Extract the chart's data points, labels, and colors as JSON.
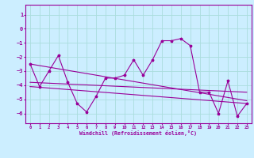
{
  "xlabel": "Windchill (Refroidissement éolien,°C)",
  "bg_color": "#cceeff",
  "line_color": "#990099",
  "grid_color": "#aadddd",
  "x_ticks": [
    0,
    1,
    2,
    3,
    4,
    5,
    6,
    7,
    8,
    9,
    10,
    11,
    12,
    13,
    14,
    15,
    16,
    17,
    18,
    19,
    20,
    21,
    22,
    23
  ],
  "y_ticks": [
    -6,
    -5,
    -4,
    -3,
    -2,
    -1,
    0,
    1
  ],
  "xlim": [
    -0.5,
    23.5
  ],
  "ylim": [
    -6.7,
    1.7
  ],
  "main_line_x": [
    0,
    1,
    2,
    3,
    4,
    5,
    6,
    7,
    8,
    9,
    10,
    11,
    12,
    13,
    14,
    15,
    16,
    17,
    18,
    19,
    20,
    21,
    22,
    23
  ],
  "main_line_y": [
    -2.5,
    -4.1,
    -3.0,
    -1.9,
    -3.8,
    -5.3,
    -5.9,
    -4.8,
    -3.5,
    -3.5,
    -3.3,
    -2.2,
    -3.3,
    -2.2,
    -0.85,
    -0.85,
    -0.7,
    -1.2,
    -4.5,
    -4.5,
    -6.0,
    -3.7,
    -6.2,
    -5.3
  ],
  "trend_line1_x": [
    0,
    23
  ],
  "trend_line1_y": [
    -2.5,
    -5.1
  ],
  "trend_line2_x": [
    0,
    23
  ],
  "trend_line2_y": [
    -3.8,
    -4.5
  ],
  "trend_line3_x": [
    0,
    23
  ],
  "trend_line3_y": [
    -4.1,
    -5.3
  ]
}
